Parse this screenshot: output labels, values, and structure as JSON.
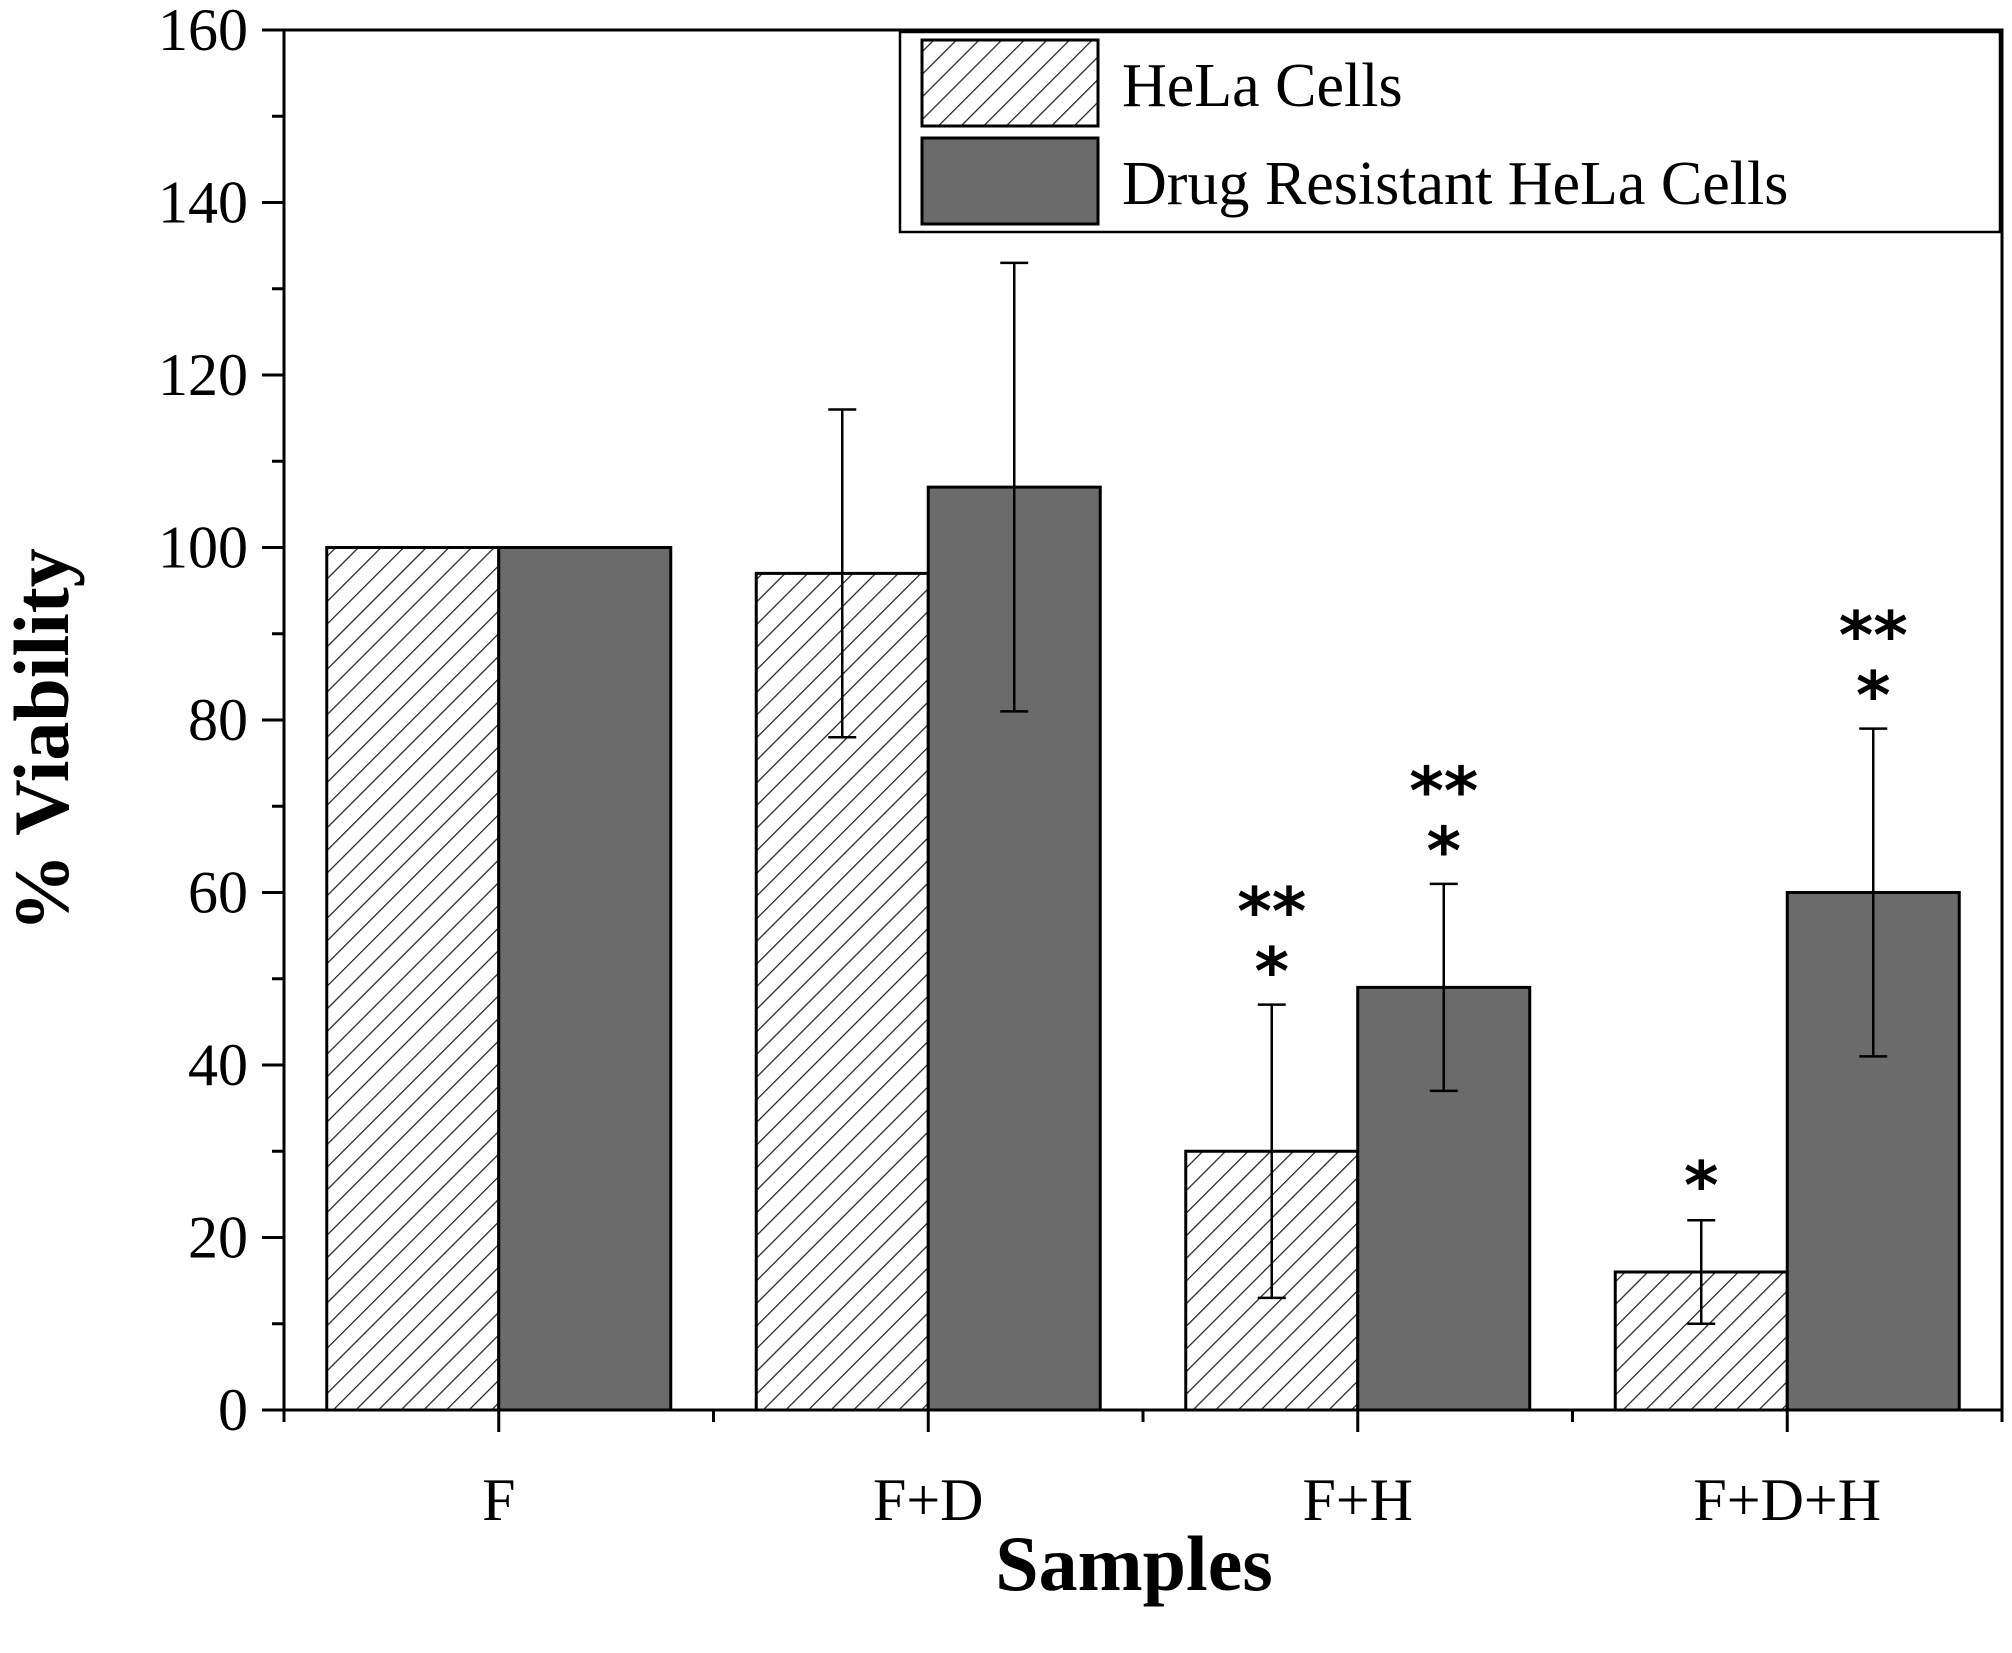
{
  "chart_data": {
    "type": "bar",
    "title": "",
    "xlabel": "Samples",
    "ylabel": "% Viability",
    "ylim": [
      0,
      160
    ],
    "yticks": [
      0,
      20,
      40,
      60,
      80,
      100,
      120,
      140,
      160
    ],
    "categories": [
      "F",
      "F+D",
      "F+H",
      "F+D+H"
    ],
    "grid": false,
    "legend_position": "top-right",
    "series": [
      {
        "name": "HeLa Cells",
        "fill": "hatch",
        "color": "#ffffff",
        "values": [
          100,
          97,
          30,
          16
        ],
        "error_low": [
          null,
          78,
          13,
          10
        ],
        "error_high": [
          null,
          116,
          47,
          22
        ],
        "annotations": [
          "",
          "",
          "***",
          "*"
        ]
      },
      {
        "name": "Drug Resistant HeLa Cells",
        "fill": "solid",
        "color": "#6b6b6b",
        "values": [
          100,
          107,
          49,
          60
        ],
        "error_low": [
          null,
          81,
          37,
          41
        ],
        "error_high": [
          null,
          133,
          61,
          79
        ],
        "annotations": [
          "",
          "",
          "***",
          "***"
        ]
      }
    ]
  }
}
